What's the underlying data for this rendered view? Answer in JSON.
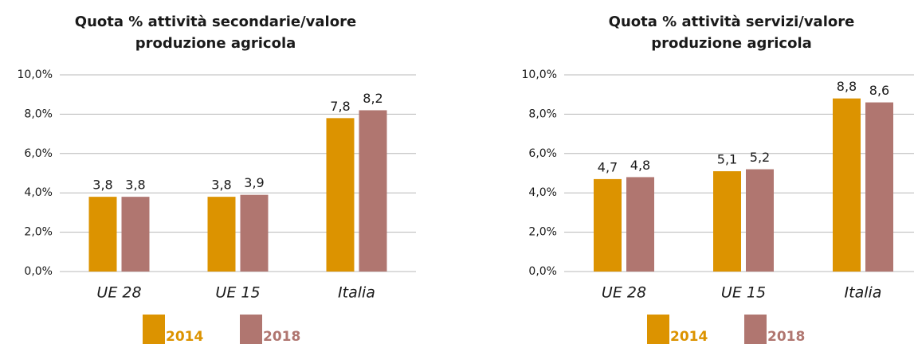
{
  "chart_data": [
    {
      "type": "bar",
      "title": [
        "Quota % attività secondarie/valore",
        "produzione agricola"
      ],
      "categories": [
        "UE 28",
        "UE 15",
        "Italia"
      ],
      "series": [
        {
          "name": "2014",
          "color": "#dc9300",
          "values": [
            3.8,
            3.8,
            7.8
          ],
          "value_labels": [
            "3,8",
            "3,8",
            "7,8"
          ]
        },
        {
          "name": "2018",
          "color": "#b07670",
          "values": [
            3.8,
            3.9,
            8.2
          ],
          "value_labels": [
            "3,8",
            "3,9",
            "8,2"
          ]
        }
      ],
      "ylim": [
        0,
        10
      ],
      "yticks": [
        {
          "value": 0,
          "label": "0,0%"
        },
        {
          "value": 2,
          "label": "2,0%"
        },
        {
          "value": 4,
          "label": "4,0%"
        },
        {
          "value": 6,
          "label": "6,0%"
        },
        {
          "value": 8,
          "label": "8,0%"
        },
        {
          "value": 10,
          "label": "10,0%"
        }
      ],
      "grid": true,
      "legend": "bottom"
    },
    {
      "type": "bar",
      "title": [
        "Quota % attività servizi/valore",
        "produzione agricola"
      ],
      "categories": [
        "UE 28",
        "UE 15",
        "Italia"
      ],
      "series": [
        {
          "name": "2014",
          "color": "#dc9300",
          "values": [
            4.7,
            5.1,
            8.8
          ],
          "value_labels": [
            "4,7",
            "5,1",
            "8,8"
          ]
        },
        {
          "name": "2018",
          "color": "#b07670",
          "values": [
            4.8,
            5.2,
            8.6
          ],
          "value_labels": [
            "4,8",
            "5,2",
            "8,6"
          ]
        }
      ],
      "ylim": [
        0,
        10
      ],
      "yticks": [
        {
          "value": 0,
          "label": "0,0%"
        },
        {
          "value": 2,
          "label": "2,0%"
        },
        {
          "value": 4,
          "label": "4,0%"
        },
        {
          "value": 6,
          "label": "6,0%"
        },
        {
          "value": 8,
          "label": "8,0%"
        },
        {
          "value": 10,
          "label": "10,0%"
        }
      ],
      "grid": true,
      "legend": "bottom"
    }
  ]
}
